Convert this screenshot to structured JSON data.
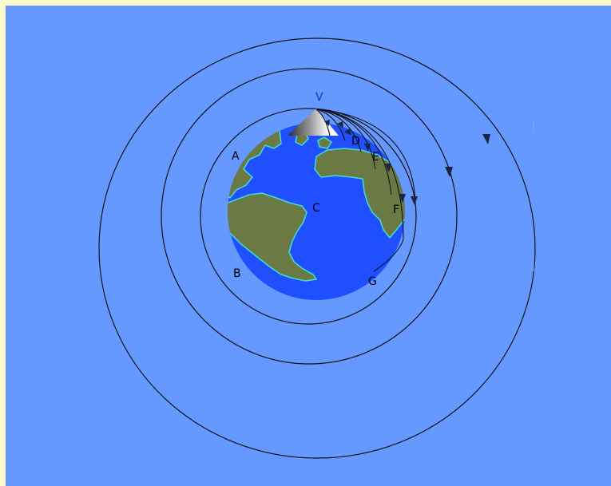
{
  "colors": {
    "frame": "#fdfbc9",
    "sky": "#6699ff",
    "ocean": "#1f4fff",
    "land": "#6b7a45",
    "coast": "#3fe0d0",
    "orbit": "#111111",
    "label": "#000000",
    "label_peak": "#1a2fd6"
  },
  "diagram": {
    "peak_label": "V",
    "center_label": "C",
    "region_labels": {
      "a": "A",
      "b": "B",
      "d": "D",
      "e": "E",
      "f": "F",
      "g": "G"
    }
  }
}
